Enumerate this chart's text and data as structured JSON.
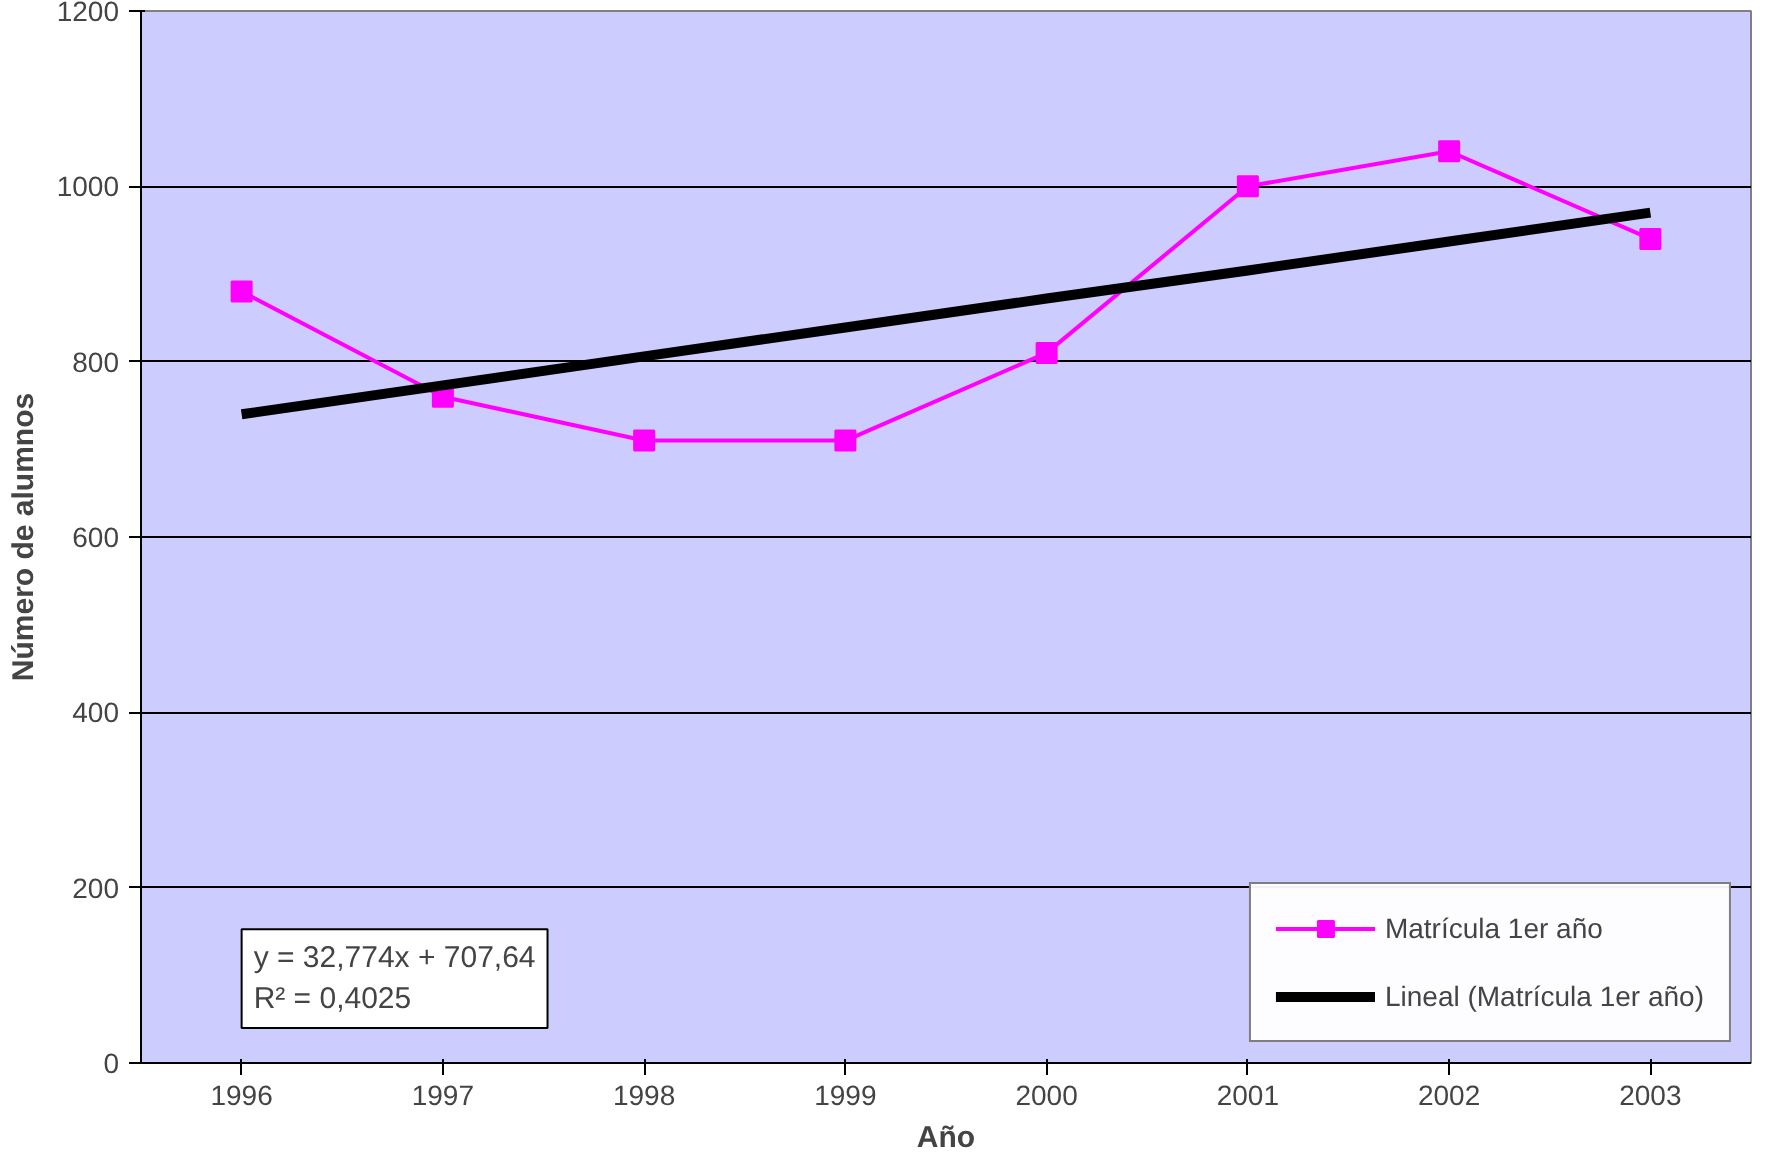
{
  "chart_data": {
    "type": "line",
    "xlabel": "Año",
    "ylabel": "Número de alumnos",
    "categories": [
      "1996",
      "1997",
      "1998",
      "1999",
      "2000",
      "2001",
      "2002",
      "2003"
    ],
    "series": [
      {
        "name": "Matrícula 1er año",
        "color": "#ff00ff",
        "marker": "square",
        "values": [
          880,
          760,
          710,
          710,
          810,
          1000,
          1040,
          940
        ]
      },
      {
        "name": "Lineal (Matrícula 1er año)",
        "color": "#000000",
        "type": "line",
        "marker": "none",
        "values": [
          740,
          773,
          806,
          839,
          872,
          904,
          937,
          970
        ]
      }
    ],
    "ylim": [
      0,
      1200
    ],
    "yticks": [
      0,
      200,
      400,
      600,
      800,
      1000,
      1200
    ],
    "grid": "y",
    "legend": "bottom right",
    "annotations": [
      "y = 32,774x + 707,64\nR² = 0,4025"
    ]
  }
}
